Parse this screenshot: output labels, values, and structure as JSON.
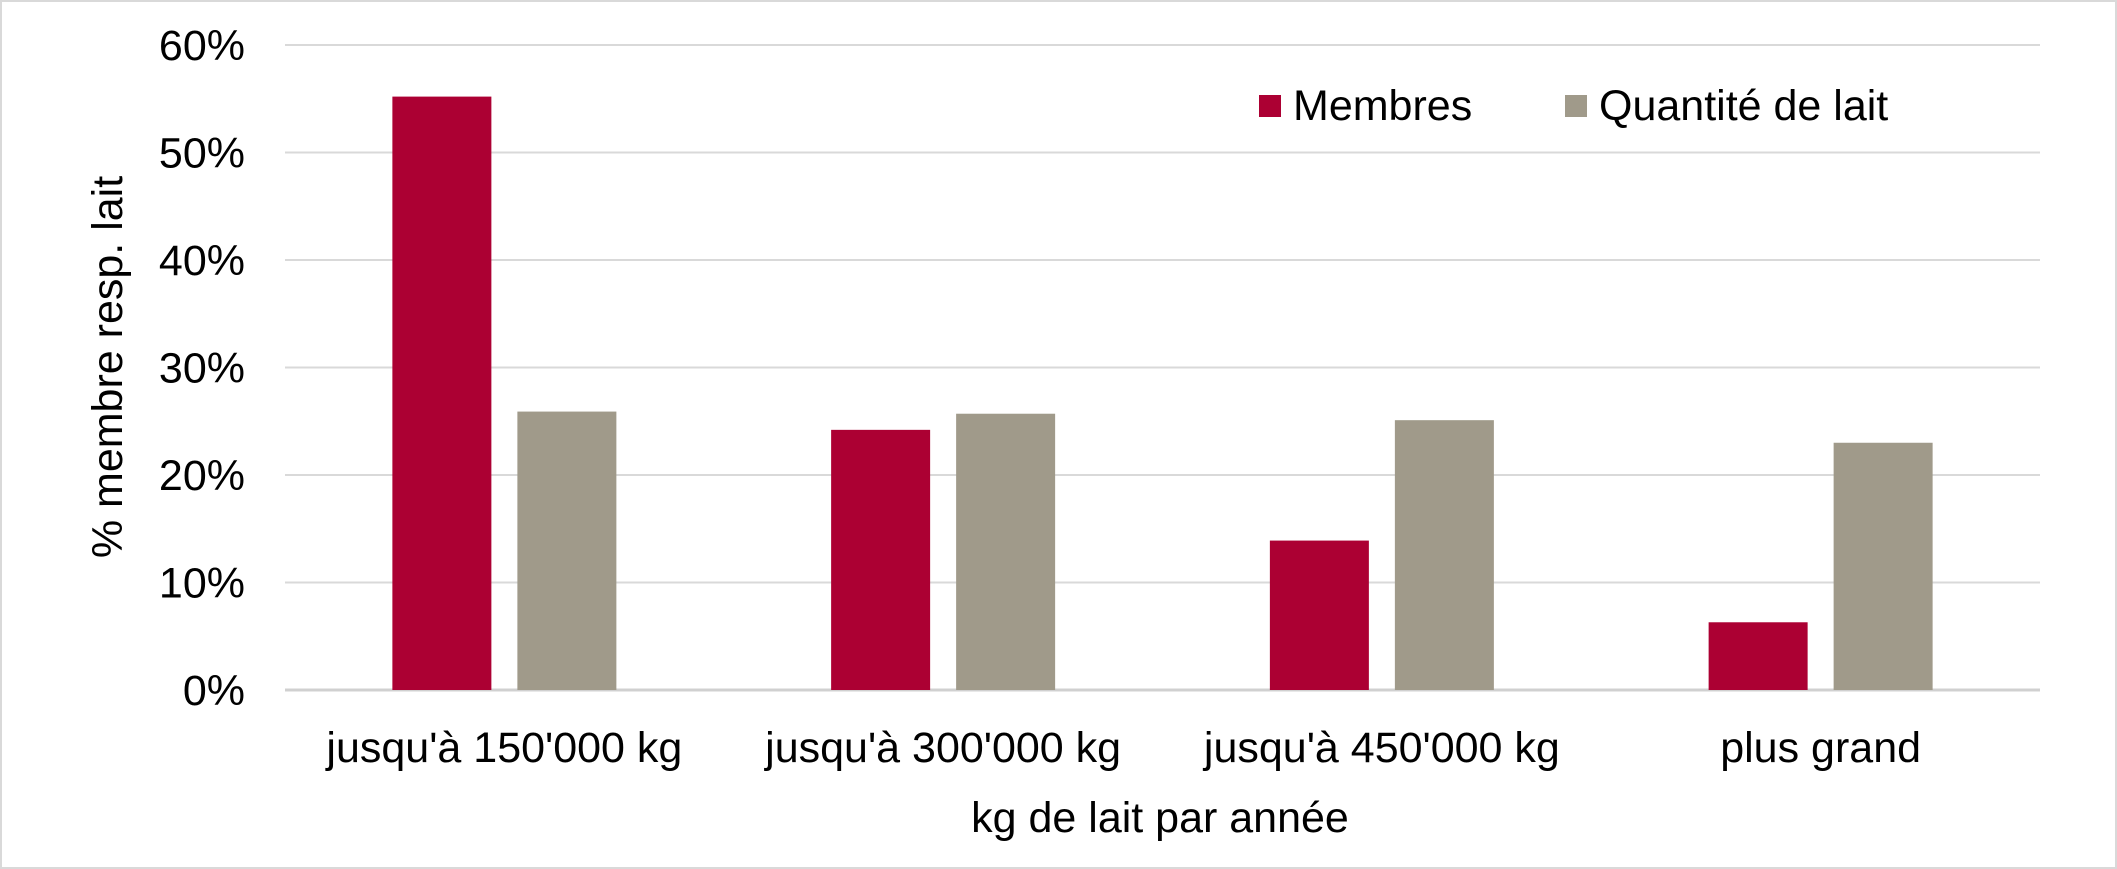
{
  "chart_data": {
    "type": "bar",
    "title": "",
    "xlabel": "kg de lait par année",
    "ylabel": "% membre resp. lait",
    "categories": [
      "jusqu'à 150'000 kg",
      "jusqu'à 300'000 kg",
      "jusqu'à 450'000 kg",
      "plus grand"
    ],
    "series": [
      {
        "name": "Membres",
        "color": "#ac0033",
        "values": [
          0.552,
          0.242,
          0.139,
          0.063
        ]
      },
      {
        "name": "Quantité de lait",
        "color": "#a09a8a",
        "values": [
          0.259,
          0.257,
          0.251,
          0.23
        ]
      }
    ],
    "ylim": [
      0,
      0.6
    ],
    "yticks": [
      0,
      0.1,
      0.2,
      0.3,
      0.4,
      0.5,
      0.6
    ],
    "ytick_labels": [
      "0%",
      "10%",
      "20%",
      "30%",
      "40%",
      "50%",
      "60%"
    ],
    "grid": true,
    "legend_position": "top-right"
  }
}
